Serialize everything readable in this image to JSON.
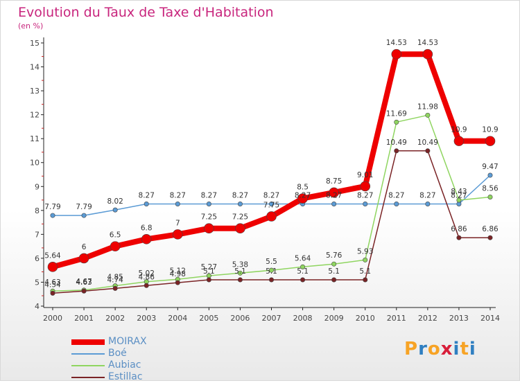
{
  "title": "Evolution du Taux de Taxe d'Habitation",
  "subtitle": "(en %)",
  "logo": {
    "text": "Proxiti",
    "letters": [
      "P",
      "r",
      "o",
      "x",
      "i",
      "t",
      "i"
    ],
    "colors": [
      "#f7a325",
      "#2f7fc1",
      "#f7a325",
      "#d81e3a",
      "#2f7fc1",
      "#f7a325",
      "#2f7fc1"
    ]
  },
  "chart_data": {
    "type": "line",
    "x": [
      "2000",
      "2001",
      "2002",
      "2003",
      "2004",
      "2005",
      "2006",
      "2007",
      "2008",
      "2009",
      "2010",
      "2011",
      "2012",
      "2013",
      "2014"
    ],
    "ylim": [
      4,
      15
    ],
    "yticks": [
      "4",
      "5",
      "6",
      "7",
      "8",
      "9",
      "10",
      "11",
      "12",
      "13",
      "14",
      "15"
    ],
    "grid": false,
    "legend_position": "bottom-left",
    "series": [
      {
        "name": "Boé",
        "color": "#5b9bd5",
        "width": 1.5,
        "dot": 3.2,
        "values": [
          7.79,
          7.79,
          8.02,
          8.27,
          8.27,
          8.27,
          8.27,
          8.27,
          8.27,
          8.27,
          8.27,
          8.27,
          8.27,
          8.27,
          9.47
        ],
        "labels": [
          "7.79",
          "7.79",
          "8.02",
          "8.27",
          "8.27",
          "8.27",
          "8.27",
          "8.27",
          "8.27",
          "8.27",
          "8.27",
          "8.27",
          "8.27",
          "8.27",
          "9.47"
        ]
      },
      {
        "name": "Aubiac",
        "color": "#8fd560",
        "width": 1.5,
        "dot": 3.2,
        "values": [
          4.63,
          4.67,
          4.85,
          5.02,
          5.12,
          5.27,
          5.38,
          5.5,
          5.64,
          5.76,
          5.93,
          11.69,
          11.98,
          8.43,
          8.56
        ],
        "labels": [
          "4.63",
          "4.67",
          "4.85",
          "5.02",
          "5.12",
          "5.27",
          "5.38",
          "5.5",
          "5.64",
          "5.76",
          "5.93",
          "11.69",
          "11.98",
          "8.43",
          "8.56"
        ]
      },
      {
        "name": "Estillac",
        "color": "#7a2325",
        "width": 1.5,
        "dot": 3.2,
        "values": [
          4.54,
          4.63,
          4.74,
          4.86,
          4.98,
          5.1,
          5.1,
          5.1,
          5.1,
          5.1,
          5.1,
          10.49,
          10.49,
          6.86,
          6.86
        ],
        "labels": [
          "4.54",
          "4.63",
          "4.74",
          "4.86",
          "4.98",
          "5.1",
          "5.1",
          "5.1",
          "5.1",
          "5.1",
          "5.1",
          "10.49",
          "10.49",
          "6.86",
          "6.86"
        ]
      },
      {
        "name": "MOIRAX",
        "color": "#ee0000",
        "width": 8,
        "dot": 7,
        "values": [
          5.64,
          6,
          6.5,
          6.8,
          7,
          7.25,
          7.25,
          7.75,
          8.5,
          8.75,
          9.01,
          14.53,
          14.53,
          10.9,
          10.9
        ],
        "labels": [
          "5.64",
          "6",
          "6.5",
          "6.8",
          "7",
          "7.25",
          "7.25",
          "7.75",
          "8.5",
          "8.75",
          "9.01",
          "14.53",
          "14.53",
          "10.9",
          "10.9"
        ]
      }
    ],
    "legend": [
      {
        "name": "MOIRAX",
        "color": "#ee0000",
        "thickness": 8
      },
      {
        "name": "Boé",
        "color": "#5b9bd5",
        "thickness": 2
      },
      {
        "name": "Aubiac",
        "color": "#8fd560",
        "thickness": 2
      },
      {
        "name": "Estillac",
        "color": "#7a2325",
        "thickness": 2
      }
    ]
  }
}
